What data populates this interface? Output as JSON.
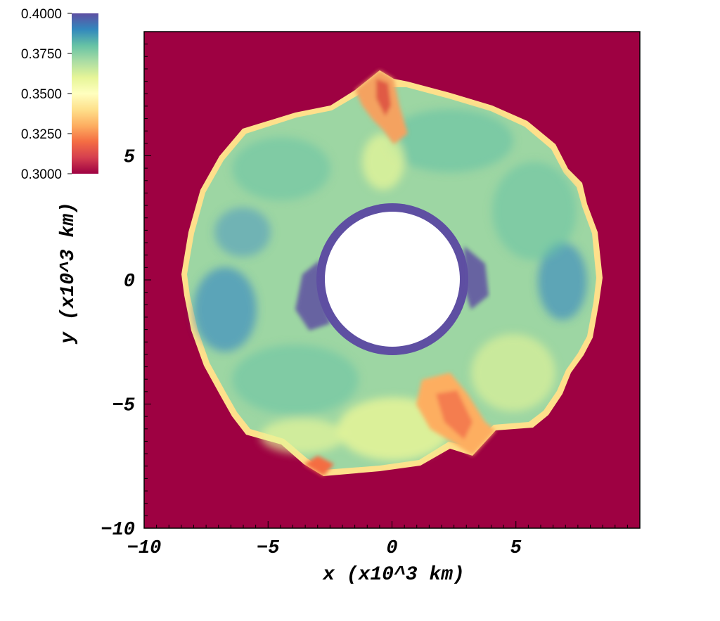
{
  "chart_data": {
    "type": "heatmap",
    "title": "",
    "xlabel": "x (x10^3 km)",
    "ylabel": "y (x10^3 km)",
    "xlim": [
      -10,
      10
    ],
    "ylim": [
      -10,
      10
    ],
    "x_ticks": [
      {
        "value": -10,
        "label": "−10"
      },
      {
        "value": -5,
        "label": "−5"
      },
      {
        "value": 0,
        "label": "0"
      },
      {
        "value": 5,
        "label": "5"
      }
    ],
    "y_ticks": [
      {
        "value": -10,
        "label": "−10"
      },
      {
        "value": -5,
        "label": "−5"
      },
      {
        "value": 0,
        "label": "0"
      },
      {
        "value": 5,
        "label": "5"
      }
    ],
    "colorbar": {
      "range": [
        0.3,
        0.4
      ],
      "tick_labels": [
        {
          "value": 0.4,
          "label": "0.4000"
        },
        {
          "value": 0.375,
          "label": "0.3750"
        },
        {
          "value": 0.35,
          "label": "0.3500"
        },
        {
          "value": 0.325,
          "label": "0.3250"
        },
        {
          "value": 0.3,
          "label": "0.3000"
        }
      ],
      "colormap": "Spectral",
      "colors": [
        "#9e0142",
        "#d53e4f",
        "#f46d43",
        "#fdae61",
        "#fee08b",
        "#ffffbf",
        "#e6f598",
        "#abdda4",
        "#66c2a5",
        "#3288bd",
        "#5e4fa2"
      ]
    },
    "background_value": 0.3,
    "features": {
      "cavity_radius": 2.75,
      "inner_ring_outer_radius": 3.1,
      "inner_ring_value": 0.4,
      "shell_outer_radius_approx": 8.3,
      "shell_typical_value": 0.38,
      "low_value_plumes": [
        {
          "angle_deg": 84,
          "value": 0.32
        },
        {
          "angle_deg": -57,
          "value": 0.33
        },
        {
          "angle_deg": -112,
          "value": 0.34
        }
      ]
    }
  }
}
